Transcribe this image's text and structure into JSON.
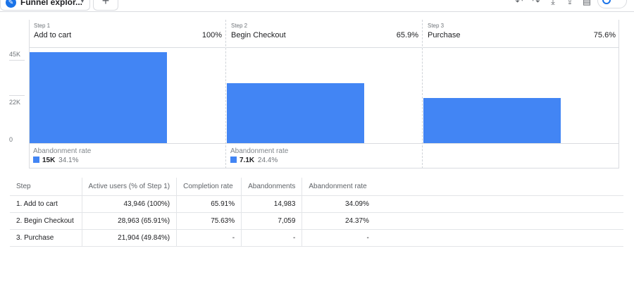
{
  "tabs": {
    "active_tab_label": "Funnel explor...",
    "add_tab_label": "+"
  },
  "toolbar": {
    "icons": [
      "undo-icon",
      "redo-icon",
      "download-icon",
      "share-icon",
      "insights-icon"
    ]
  },
  "colors": {
    "bar": "#4285f4",
    "accent": "#1a73e8"
  },
  "chart_data": {
    "type": "bar",
    "categories": [
      "Add to cart",
      "Begin Checkout",
      "Purchase"
    ],
    "step_labels": [
      "Step 1",
      "Step 2",
      "Step 3"
    ],
    "values": [
      43946,
      28963,
      21904
    ],
    "step_percent_labels": [
      "100%",
      "65.9%",
      "75.6%"
    ],
    "ytick_labels": [
      "45K",
      "22K",
      "0"
    ],
    "ylim": [
      0,
      45000
    ],
    "abandonment": [
      {
        "title": "Abandonment rate",
        "value": "15K",
        "rate": "34.1%"
      },
      {
        "title": "Abandonment rate",
        "value": "7.1K",
        "rate": "24.4%"
      }
    ]
  },
  "table": {
    "headers": [
      "Step",
      "Active users (% of Step 1)",
      "Completion rate",
      "Abandonments",
      "Abandonment rate"
    ],
    "rows": [
      {
        "step": "1. Add to cart",
        "users": "43,946 (100%)",
        "completion": "65.91%",
        "abandonments": "14,983",
        "abandonment_rate": "34.09%"
      },
      {
        "step": "2. Begin Checkout",
        "users": "28,963 (65.91%)",
        "completion": "75.63%",
        "abandonments": "7,059",
        "abandonment_rate": "24.37%"
      },
      {
        "step": "3. Purchase",
        "users": "21,904 (49.84%)",
        "completion": "-",
        "abandonments": "-",
        "abandonment_rate": "-"
      }
    ]
  }
}
